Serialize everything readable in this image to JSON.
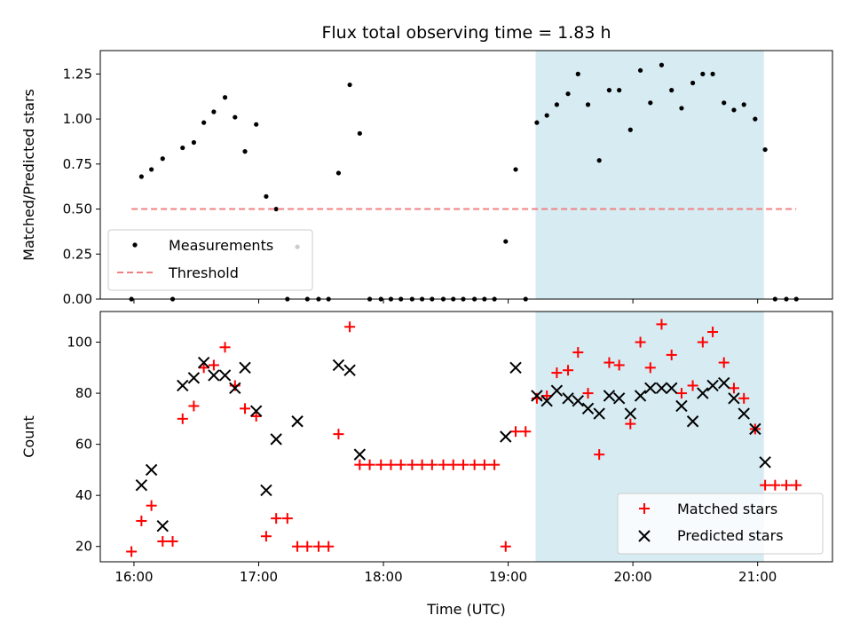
{
  "chart_data": [
    {
      "type": "scatter",
      "title": "Flux total observing time = 1.83 h",
      "ylabel": "Matched/Predicted stars",
      "xlabel": "",
      "ylim": [
        0,
        1.38
      ],
      "yticks": [
        0.0,
        0.25,
        0.5,
        0.75,
        1.0,
        1.25
      ],
      "ytick_labels": [
        "0.00",
        "0.25",
        "0.50",
        "0.75",
        "1.00",
        "1.25"
      ],
      "xlim": [
        15.73,
        21.6
      ],
      "highlight_span": [
        19.22,
        21.05
      ],
      "highlight_color": "#add8e6",
      "legend_position": "lower-left",
      "series": [
        {
          "name": "Measurements",
          "color": "#000000",
          "marker": "dot",
          "points": [
            [
              15.98,
              0.0
            ],
            [
              16.06,
              0.68
            ],
            [
              16.14,
              0.72
            ],
            [
              16.23,
              0.78
            ],
            [
              16.31,
              0.0
            ],
            [
              16.39,
              0.84
            ],
            [
              16.48,
              0.87
            ],
            [
              16.56,
              0.98
            ],
            [
              16.64,
              1.04
            ],
            [
              16.73,
              1.12
            ],
            [
              16.81,
              1.01
            ],
            [
              16.89,
              0.82
            ],
            [
              16.98,
              0.97
            ],
            [
              17.06,
              0.57
            ],
            [
              17.14,
              0.5
            ],
            [
              17.23,
              0.0
            ],
            [
              17.31,
              0.29
            ],
            [
              17.39,
              0.0
            ],
            [
              17.48,
              0.0
            ],
            [
              17.56,
              0.0
            ],
            [
              17.64,
              0.7
            ],
            [
              17.73,
              1.19
            ],
            [
              17.81,
              0.92
            ],
            [
              17.89,
              0.0
            ],
            [
              17.98,
              0.0
            ],
            [
              18.06,
              0.0
            ],
            [
              18.14,
              0.0
            ],
            [
              18.23,
              0.0
            ],
            [
              18.31,
              0.0
            ],
            [
              18.39,
              0.0
            ],
            [
              18.48,
              0.0
            ],
            [
              18.56,
              0.0
            ],
            [
              18.64,
              0.0
            ],
            [
              18.73,
              0.0
            ],
            [
              18.81,
              0.0
            ],
            [
              18.89,
              0.0
            ],
            [
              18.98,
              0.32
            ],
            [
              19.06,
              0.72
            ],
            [
              19.14,
              0.0
            ],
            [
              19.23,
              0.98
            ],
            [
              19.31,
              1.02
            ],
            [
              19.39,
              1.08
            ],
            [
              19.48,
              1.14
            ],
            [
              19.56,
              1.25
            ],
            [
              19.64,
              1.08
            ],
            [
              19.73,
              0.77
            ],
            [
              19.81,
              1.16
            ],
            [
              19.89,
              1.16
            ],
            [
              19.98,
              0.94
            ],
            [
              20.06,
              1.27
            ],
            [
              20.14,
              1.09
            ],
            [
              20.23,
              1.3
            ],
            [
              20.31,
              1.16
            ],
            [
              20.39,
              1.06
            ],
            [
              20.48,
              1.2
            ],
            [
              20.56,
              1.25
            ],
            [
              20.64,
              1.25
            ],
            [
              20.73,
              1.09
            ],
            [
              20.81,
              1.05
            ],
            [
              20.89,
              1.08
            ],
            [
              20.98,
              1.0
            ],
            [
              21.06,
              0.83
            ],
            [
              21.14,
              0.0
            ],
            [
              21.23,
              0.0
            ],
            [
              21.31,
              0.0
            ]
          ]
        },
        {
          "name": "Threshold",
          "color": "#f08080",
          "style": "dashed",
          "points": [
            [
              15.98,
              0.5
            ],
            [
              21.31,
              0.5
            ]
          ]
        }
      ]
    },
    {
      "type": "scatter",
      "title": "",
      "ylabel": "Count",
      "xlabel": "Time (UTC)",
      "ylim": [
        14,
        112
      ],
      "yticks": [
        20,
        40,
        60,
        80,
        100
      ],
      "ytick_labels": [
        "20",
        "40",
        "60",
        "80",
        "100"
      ],
      "xlim": [
        15.73,
        21.6
      ],
      "xticks": [
        16,
        17,
        18,
        19,
        20,
        21
      ],
      "xtick_labels": [
        "16:00",
        "17:00",
        "18:00",
        "19:00",
        "20:00",
        "21:00"
      ],
      "highlight_span": [
        19.22,
        21.05
      ],
      "highlight_color": "#add8e6",
      "legend_position": "lower-right",
      "series": [
        {
          "name": "Matched stars",
          "color": "#ff0000",
          "marker": "plus",
          "points": [
            [
              15.98,
              18
            ],
            [
              16.06,
              30
            ],
            [
              16.14,
              36
            ],
            [
              16.23,
              22
            ],
            [
              16.31,
              22
            ],
            [
              16.39,
              70
            ],
            [
              16.48,
              75
            ],
            [
              16.56,
              90
            ],
            [
              16.64,
              91
            ],
            [
              16.73,
              98
            ],
            [
              16.81,
              83
            ],
            [
              16.89,
              74
            ],
            [
              16.98,
              71
            ],
            [
              17.06,
              24
            ],
            [
              17.14,
              31
            ],
            [
              17.23,
              31
            ],
            [
              17.31,
              20
            ],
            [
              17.39,
              20
            ],
            [
              17.48,
              20
            ],
            [
              17.56,
              20
            ],
            [
              17.64,
              64
            ],
            [
              17.73,
              106
            ],
            [
              17.81,
              52
            ],
            [
              17.89,
              52
            ],
            [
              17.98,
              52
            ],
            [
              18.06,
              52
            ],
            [
              18.14,
              52
            ],
            [
              18.23,
              52
            ],
            [
              18.31,
              52
            ],
            [
              18.39,
              52
            ],
            [
              18.48,
              52
            ],
            [
              18.56,
              52
            ],
            [
              18.64,
              52
            ],
            [
              18.73,
              52
            ],
            [
              18.81,
              52
            ],
            [
              18.89,
              52
            ],
            [
              18.98,
              20
            ],
            [
              19.06,
              65
            ],
            [
              19.14,
              65
            ],
            [
              19.23,
              78
            ],
            [
              19.31,
              79
            ],
            [
              19.39,
              88
            ],
            [
              19.48,
              89
            ],
            [
              19.56,
              96
            ],
            [
              19.64,
              80
            ],
            [
              19.73,
              56
            ],
            [
              19.81,
              92
            ],
            [
              19.89,
              91
            ],
            [
              19.98,
              68
            ],
            [
              20.06,
              100
            ],
            [
              20.14,
              90
            ],
            [
              20.23,
              107
            ],
            [
              20.31,
              95
            ],
            [
              20.39,
              80
            ],
            [
              20.48,
              83
            ],
            [
              20.56,
              100
            ],
            [
              20.64,
              104
            ],
            [
              20.73,
              92
            ],
            [
              20.81,
              82
            ],
            [
              20.89,
              78
            ],
            [
              20.98,
              66
            ],
            [
              21.06,
              44
            ],
            [
              21.14,
              44
            ],
            [
              21.23,
              44
            ],
            [
              21.31,
              44
            ]
          ]
        },
        {
          "name": "Predicted stars",
          "color": "#000000",
          "marker": "x",
          "points": [
            [
              16.06,
              44
            ],
            [
              16.14,
              50
            ],
            [
              16.23,
              28
            ],
            [
              16.39,
              83
            ],
            [
              16.48,
              86
            ],
            [
              16.56,
              92
            ],
            [
              16.64,
              87
            ],
            [
              16.73,
              87
            ],
            [
              16.81,
              82
            ],
            [
              16.89,
              90
            ],
            [
              16.98,
              73
            ],
            [
              17.06,
              42
            ],
            [
              17.14,
              62
            ],
            [
              17.31,
              69
            ],
            [
              17.64,
              91
            ],
            [
              17.73,
              89
            ],
            [
              17.81,
              56
            ],
            [
              18.98,
              63
            ],
            [
              19.06,
              90
            ],
            [
              19.23,
              79
            ],
            [
              19.31,
              77
            ],
            [
              19.39,
              81
            ],
            [
              19.48,
              78
            ],
            [
              19.56,
              77
            ],
            [
              19.64,
              74
            ],
            [
              19.73,
              72
            ],
            [
              19.81,
              79
            ],
            [
              19.89,
              78
            ],
            [
              19.98,
              72
            ],
            [
              20.06,
              79
            ],
            [
              20.14,
              82
            ],
            [
              20.23,
              82
            ],
            [
              20.31,
              82
            ],
            [
              20.39,
              75
            ],
            [
              20.48,
              69
            ],
            [
              20.56,
              80
            ],
            [
              20.64,
              83
            ],
            [
              20.73,
              84
            ],
            [
              20.81,
              78
            ],
            [
              20.89,
              72
            ],
            [
              20.98,
              66
            ],
            [
              21.06,
              53
            ]
          ]
        }
      ]
    }
  ]
}
